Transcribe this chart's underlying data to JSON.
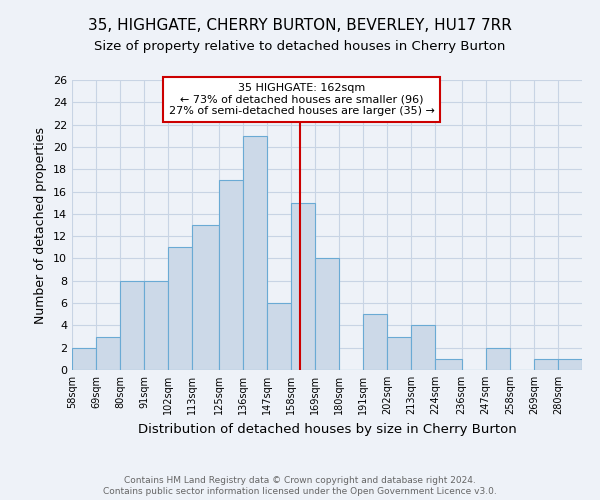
{
  "title": "35, HIGHGATE, CHERRY BURTON, BEVERLEY, HU17 7RR",
  "subtitle": "Size of property relative to detached houses in Cherry Burton",
  "xlabel": "Distribution of detached houses by size in Cherry Burton",
  "ylabel": "Number of detached properties",
  "footnote1": "Contains HM Land Registry data © Crown copyright and database right 2024.",
  "footnote2": "Contains public sector information licensed under the Open Government Licence v3.0.",
  "bin_labels": [
    "58sqm",
    "69sqm",
    "80sqm",
    "91sqm",
    "102sqm",
    "113sqm",
    "125sqm",
    "136sqm",
    "147sqm",
    "158sqm",
    "169sqm",
    "180sqm",
    "191sqm",
    "202sqm",
    "213sqm",
    "224sqm",
    "236sqm",
    "247sqm",
    "258sqm",
    "269sqm",
    "280sqm"
  ],
  "bar_values": [
    2,
    3,
    8,
    8,
    11,
    13,
    17,
    21,
    6,
    15,
    10,
    0,
    5,
    3,
    4,
    1,
    0,
    2,
    0,
    1,
    1
  ],
  "bin_edges": [
    58,
    69,
    80,
    91,
    102,
    113,
    125,
    136,
    147,
    158,
    169,
    180,
    191,
    202,
    213,
    224,
    236,
    247,
    258,
    269,
    280,
    291
  ],
  "bar_color": "#ccd9e8",
  "bar_edge_color": "#6aaad4",
  "vline_x": 162,
  "annotation_box_text": "35 HIGHGATE: 162sqm\n← 73% of detached houses are smaller (96)\n27% of semi-detached houses are larger (35) →",
  "annotation_box_color": "#cc0000",
  "ylim": [
    0,
    26
  ],
  "yticks": [
    0,
    2,
    4,
    6,
    8,
    10,
    12,
    14,
    16,
    18,
    20,
    22,
    24,
    26
  ],
  "grid_color": "#c8d4e4",
  "background_color": "#eef2f8",
  "title_fontsize": 11,
  "subtitle_fontsize": 9.5,
  "xlabel_fontsize": 9.5,
  "ylabel_fontsize": 9
}
